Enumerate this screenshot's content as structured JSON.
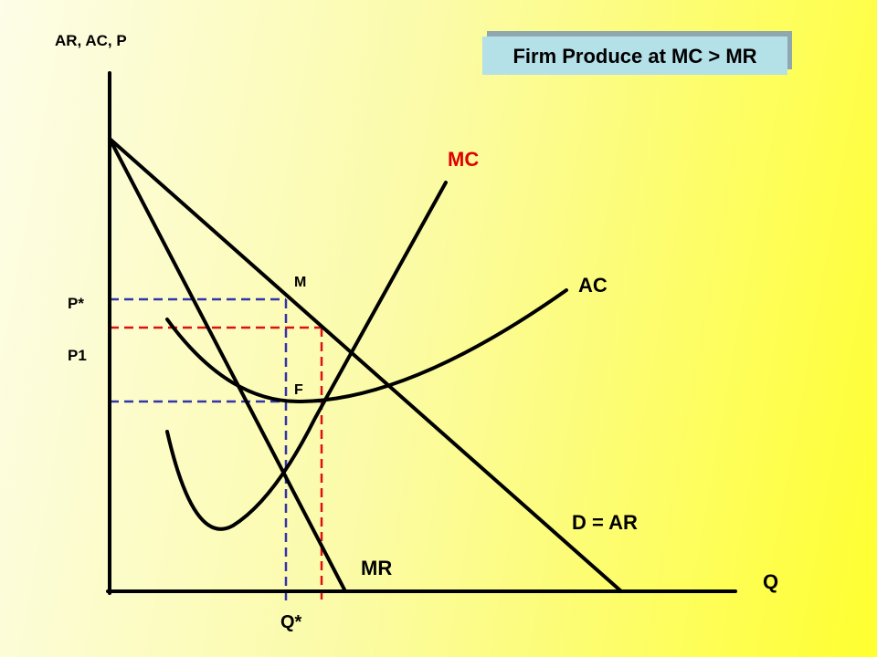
{
  "axes": {
    "y_label": "AR, AC, P",
    "x_label": "Q"
  },
  "title": "Firm Produce at MC > MR",
  "curves": {
    "mc": "MC",
    "ac": "AC",
    "demand": "D = AR",
    "mr": "MR"
  },
  "points": {
    "m": "M",
    "f": "F"
  },
  "prices": {
    "p_star": "P*",
    "p1": "P1"
  },
  "quantity": {
    "q_star": "Q*"
  }
}
